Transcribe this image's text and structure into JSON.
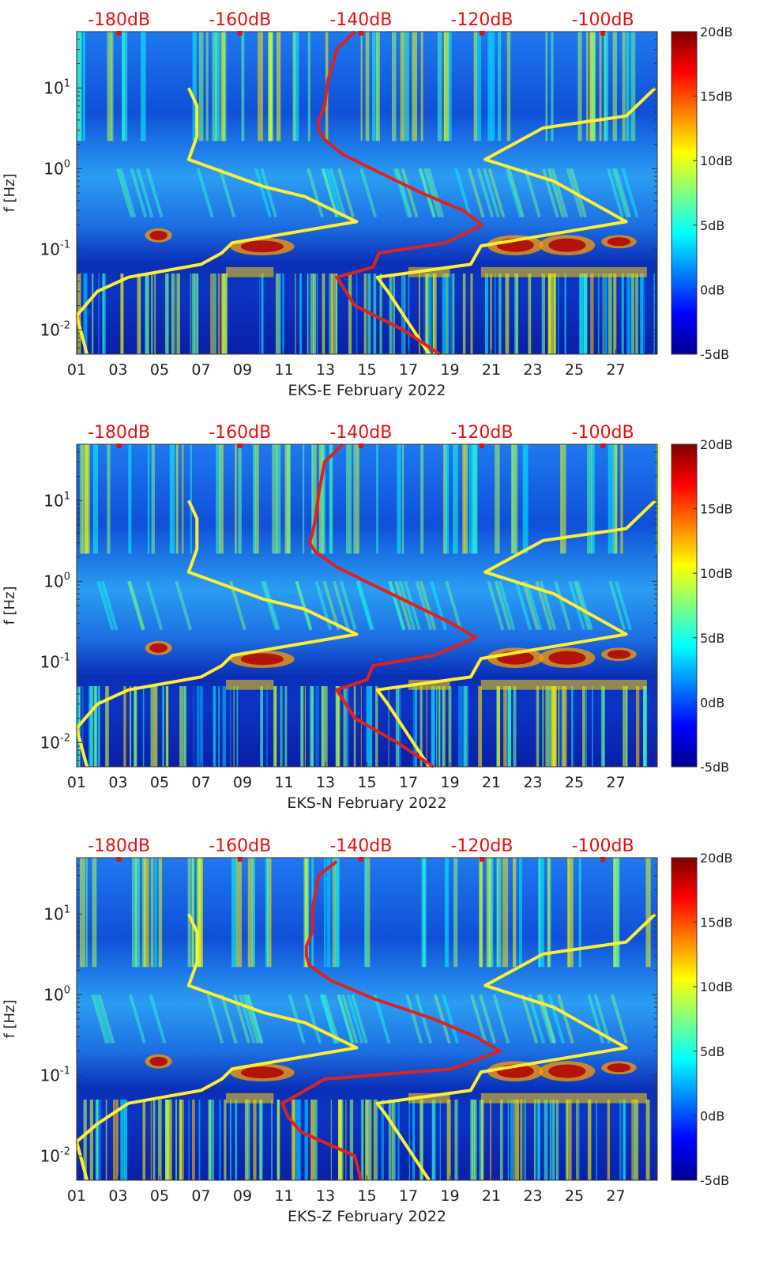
{
  "chart_data": [
    {
      "type": "heatmap",
      "xlabel": "EKS-E February 2022",
      "ylabel": "f [Hz]",
      "x_ticks": [
        "01",
        "03",
        "05",
        "07",
        "09",
        "11",
        "13",
        "15",
        "17",
        "19",
        "21",
        "23",
        "25",
        "27"
      ],
      "x_range_days": [
        1,
        29
      ],
      "y_scale": "log",
      "y_ticks": [
        {
          "value": 0.01,
          "base": "10",
          "exp": "-2"
        },
        {
          "value": 0.1,
          "base": "10",
          "exp": "-1"
        },
        {
          "value": 1,
          "base": "10",
          "exp": "0"
        },
        {
          "value": 10,
          "base": "10",
          "exp": "1"
        }
      ],
      "y_range_hz": [
        0.005,
        50
      ],
      "top_axis_ticks": [
        "-180dB",
        "-160dB",
        "-140dB",
        "-120dB",
        "-100dB"
      ],
      "top_axis_range_db": [
        -187,
        -91
      ],
      "colorbar_ticks": [
        "20dB",
        "15dB",
        "10dB",
        "5dB",
        "0dB",
        "-5dB"
      ],
      "colorbar_range_db": [
        -5,
        20
      ],
      "colormap": "jet",
      "lines": [
        {
          "color": "#ffee33",
          "points": [
            [
              6.4,
              10
            ],
            [
              6.8,
              6
            ],
            [
              6.8,
              2.5
            ],
            [
              6.4,
              1.3
            ],
            [
              10,
              0.6
            ],
            [
              12,
              0.45
            ],
            [
              14.5,
              0.22
            ],
            [
              8.5,
              0.12
            ],
            [
              8.0,
              0.09
            ],
            [
              7.0,
              0.065
            ],
            [
              3.5,
              0.045
            ],
            [
              2.0,
              0.03
            ],
            [
              1.0,
              0.015
            ],
            [
              1.5,
              0.005
            ]
          ]
        },
        {
          "color": "#ffee33",
          "points": [
            [
              28.9,
              10
            ],
            [
              27.5,
              4.5
            ],
            [
              23.5,
              3.2
            ],
            [
              20.7,
              1.3
            ],
            [
              24,
              0.7
            ],
            [
              27.5,
              0.22
            ],
            [
              20.5,
              0.11
            ],
            [
              20,
              0.065
            ],
            [
              15.5,
              0.045
            ],
            [
              16,
              0.03
            ],
            [
              18,
              0.005
            ]
          ]
        },
        {
          "color": "#dd2222",
          "points": [
            [
              -141,
              50
            ],
            [
              -144,
              30
            ],
            [
              -145.5,
              12
            ],
            [
              -146,
              6
            ],
            [
              -147,
              4
            ],
            [
              -147,
              3
            ],
            [
              -146,
              2.3
            ],
            [
              -143,
              1.5
            ],
            [
              -137,
              0.9
            ],
            [
              -130,
              0.5
            ],
            [
              -123,
              0.3
            ],
            [
              -120,
              0.2
            ],
            [
              -126,
              0.12
            ],
            [
              -137,
              0.09
            ],
            [
              -138,
              0.06
            ],
            [
              -144,
              0.045
            ],
            [
              -141,
              0.02
            ],
            [
              -133,
              0.01
            ],
            [
              -127,
              0.005
            ]
          ]
        }
      ]
    },
    {
      "type": "heatmap",
      "xlabel": "EKS-N February 2022",
      "ylabel": "f [Hz]",
      "x_ticks": [
        "01",
        "03",
        "05",
        "07",
        "09",
        "11",
        "13",
        "15",
        "17",
        "19",
        "21",
        "23",
        "25",
        "27"
      ],
      "x_range_days": [
        1,
        29
      ],
      "y_scale": "log",
      "y_ticks": [
        {
          "value": 0.01,
          "base": "10",
          "exp": "-2"
        },
        {
          "value": 0.1,
          "base": "10",
          "exp": "-1"
        },
        {
          "value": 1,
          "base": "10",
          "exp": "0"
        },
        {
          "value": 10,
          "base": "10",
          "exp": "1"
        }
      ],
      "y_range_hz": [
        0.005,
        50
      ],
      "top_axis_ticks": [
        "-180dB",
        "-160dB",
        "-140dB",
        "-120dB",
        "-100dB"
      ],
      "top_axis_range_db": [
        -187,
        -91
      ],
      "colorbar_ticks": [
        "20dB",
        "15dB",
        "10dB",
        "5dB",
        "0dB",
        "-5dB"
      ],
      "colorbar_range_db": [
        -5,
        20
      ],
      "colormap": "jet",
      "lines": [
        {
          "color": "#ffee33",
          "points": [
            [
              6.4,
              10
            ],
            [
              6.8,
              6
            ],
            [
              6.8,
              2.5
            ],
            [
              6.4,
              1.3
            ],
            [
              10,
              0.6
            ],
            [
              12,
              0.45
            ],
            [
              14.5,
              0.22
            ],
            [
              8.5,
              0.12
            ],
            [
              8.0,
              0.09
            ],
            [
              7.0,
              0.065
            ],
            [
              3.5,
              0.045
            ],
            [
              2.0,
              0.03
            ],
            [
              1.0,
              0.015
            ],
            [
              1.5,
              0.005
            ]
          ]
        },
        {
          "color": "#ffee33",
          "points": [
            [
              28.9,
              10
            ],
            [
              27.5,
              4.5
            ],
            [
              23.5,
              3.2
            ],
            [
              20.7,
              1.3
            ],
            [
              24,
              0.7
            ],
            [
              27.5,
              0.22
            ],
            [
              20.5,
              0.11
            ],
            [
              20,
              0.065
            ],
            [
              15.5,
              0.045
            ],
            [
              16,
              0.03
            ],
            [
              18,
              0.005
            ]
          ]
        },
        {
          "color": "#dd2222",
          "points": [
            [
              -143,
              50
            ],
            [
              -146,
              30
            ],
            [
              -147,
              12
            ],
            [
              -147.5,
              6
            ],
            [
              -148,
              4
            ],
            [
              -148.5,
              3
            ],
            [
              -147.5,
              2.3
            ],
            [
              -144,
              1.5
            ],
            [
              -138,
              0.9
            ],
            [
              -131,
              0.5
            ],
            [
              -125,
              0.3
            ],
            [
              -121,
              0.2
            ],
            [
              -128,
              0.12
            ],
            [
              -138,
              0.09
            ],
            [
              -139,
              0.06
            ],
            [
              -144,
              0.045
            ],
            [
              -141,
              0.02
            ],
            [
              -134,
              0.01
            ],
            [
              -128,
              0.005
            ]
          ]
        }
      ]
    },
    {
      "type": "heatmap",
      "xlabel": "EKS-Z February 2022",
      "ylabel": "f [Hz]",
      "x_ticks": [
        "01",
        "03",
        "05",
        "07",
        "09",
        "11",
        "13",
        "15",
        "17",
        "19",
        "21",
        "23",
        "25",
        "27"
      ],
      "x_range_days": [
        1,
        29
      ],
      "y_scale": "log",
      "y_ticks": [
        {
          "value": 0.01,
          "base": "10",
          "exp": "-2"
        },
        {
          "value": 0.1,
          "base": "10",
          "exp": "-1"
        },
        {
          "value": 1,
          "base": "10",
          "exp": "0"
        },
        {
          "value": 10,
          "base": "10",
          "exp": "1"
        }
      ],
      "y_range_hz": [
        0.005,
        50
      ],
      "top_axis_ticks": [
        "-180dB",
        "-160dB",
        "-140dB",
        "-120dB",
        "-100dB"
      ],
      "top_axis_range_db": [
        -187,
        -91
      ],
      "colorbar_ticks": [
        "20dB",
        "15dB",
        "10dB",
        "5dB",
        "0dB",
        "-5dB"
      ],
      "colorbar_range_db": [
        -5,
        20
      ],
      "colormap": "jet",
      "lines": [
        {
          "color": "#ffee33",
          "points": [
            [
              6.4,
              10
            ],
            [
              6.8,
              6
            ],
            [
              6.8,
              2.5
            ],
            [
              6.4,
              1.3
            ],
            [
              10,
              0.6
            ],
            [
              12,
              0.45
            ],
            [
              14.5,
              0.22
            ],
            [
              8.5,
              0.12
            ],
            [
              8.0,
              0.09
            ],
            [
              7.0,
              0.065
            ],
            [
              3.5,
              0.045
            ],
            [
              2.0,
              0.025
            ],
            [
              1.0,
              0.015
            ],
            [
              1.5,
              0.005
            ]
          ]
        },
        {
          "color": "#ffee33",
          "points": [
            [
              28.9,
              10
            ],
            [
              27.5,
              4.5
            ],
            [
              23.5,
              3.2
            ],
            [
              20.7,
              1.3
            ],
            [
              24,
              0.7
            ],
            [
              27.5,
              0.22
            ],
            [
              20.5,
              0.11
            ],
            [
              20,
              0.065
            ],
            [
              15.5,
              0.045
            ],
            [
              16,
              0.03
            ],
            [
              18,
              0.005
            ]
          ]
        },
        {
          "color": "#dd2222",
          "points": [
            [
              -144,
              45
            ],
            [
              -147,
              30
            ],
            [
              -148,
              12
            ],
            [
              -148,
              6
            ],
            [
              -149,
              4
            ],
            [
              -149,
              3
            ],
            [
              -148.5,
              2.3
            ],
            [
              -145,
              1.5
            ],
            [
              -138,
              0.9
            ],
            [
              -128,
              0.5
            ],
            [
              -121,
              0.3
            ],
            [
              -117,
              0.2
            ],
            [
              -125,
              0.12
            ],
            [
              -146,
              0.09
            ],
            [
              -150,
              0.06
            ],
            [
              -153,
              0.045
            ],
            [
              -152,
              0.03
            ],
            [
              -150,
              0.02
            ],
            [
              -141,
              0.01
            ],
            [
              -140,
              0.005
            ]
          ]
        }
      ]
    }
  ]
}
